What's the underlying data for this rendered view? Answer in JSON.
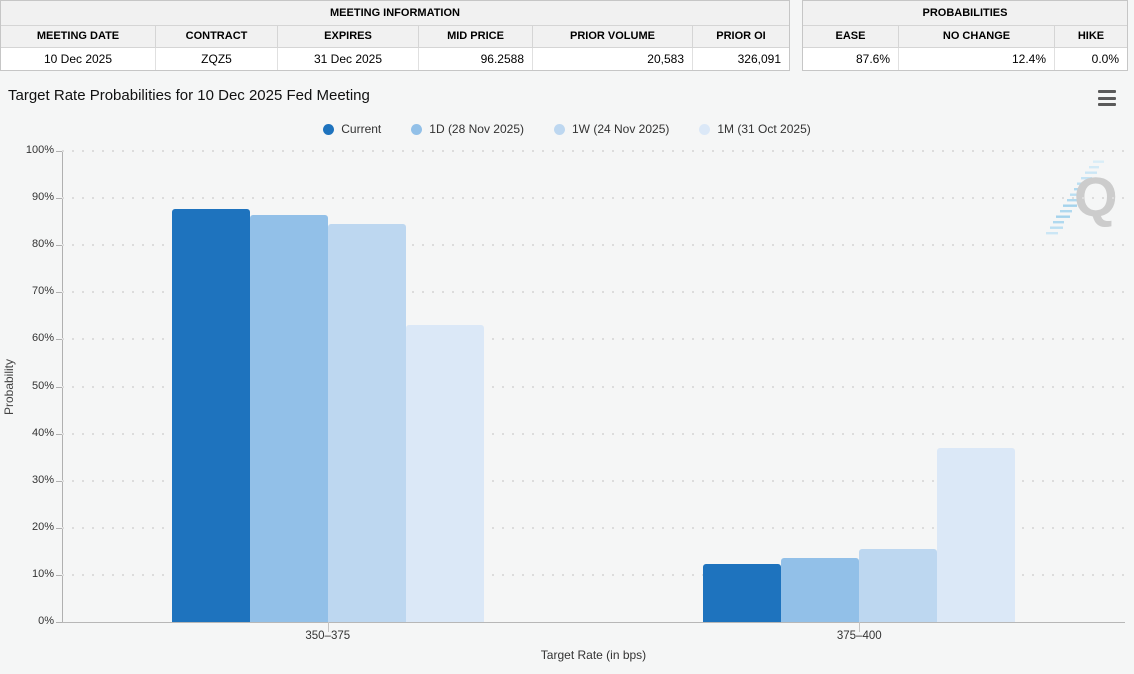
{
  "meeting_info": {
    "title": "MEETING INFORMATION",
    "columns": [
      "MEETING DATE",
      "CONTRACT",
      "EXPIRES",
      "MID PRICE",
      "PRIOR VOLUME",
      "PRIOR OI"
    ],
    "values": [
      "10 Dec 2025",
      "ZQZ5",
      "31 Dec 2025",
      "96.2588",
      "20,583",
      "326,091"
    ]
  },
  "probabilities": {
    "title": "PROBABILITIES",
    "columns": [
      "EASE",
      "NO CHANGE",
      "HIKE"
    ],
    "values": [
      "87.6%",
      "12.4%",
      "0.0%"
    ]
  },
  "chart": {
    "title": "Target Rate Probabilities for 10 Dec 2025 Fed Meeting"
  },
  "watermark": {
    "letter": "Q"
  },
  "chart_data": {
    "type": "bar",
    "title": "Target Rate Probabilities for 10 Dec 2025 Fed Meeting",
    "categories": [
      "350–375",
      "375–400"
    ],
    "series": [
      {
        "name": "Current",
        "color": "#1E73BE",
        "values": [
          87.6,
          12.4
        ]
      },
      {
        "name": "1D (28 Nov 2025)",
        "color": "#92C0E8",
        "values": [
          86.4,
          13.6
        ]
      },
      {
        "name": "1W (24 Nov 2025)",
        "color": "#BDD7F0",
        "values": [
          84.5,
          15.5
        ]
      },
      {
        "name": "1M (31 Oct 2025)",
        "color": "#DBE8F7",
        "values": [
          63.0,
          37.0
        ]
      }
    ],
    "xlabel": "Target Rate (in bps)",
    "ylabel": "Probability",
    "ylim": [
      0,
      100
    ],
    "ytick_step": 10,
    "ytick_labels": [
      "0%",
      "10%",
      "20%",
      "30%",
      "40%",
      "50%",
      "60%",
      "70%",
      "80%",
      "90%",
      "100%"
    ],
    "grid": "dotted horizontal",
    "legend_position": "top-center"
  }
}
